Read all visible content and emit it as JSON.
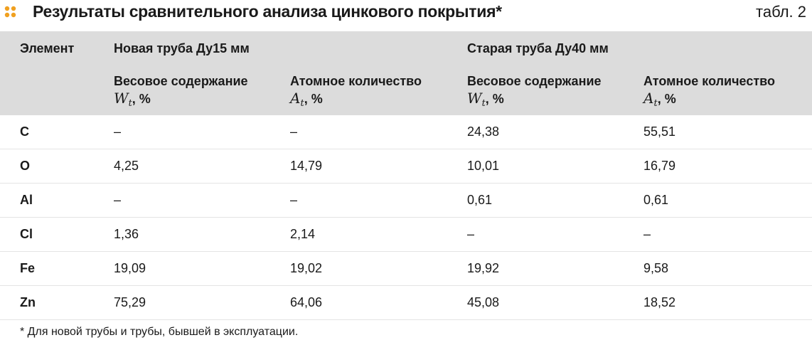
{
  "header": {
    "title": "Результаты сравнительного анализа цинкового покрытия*",
    "number": "табл. 2"
  },
  "table": {
    "element_header": "Элемент",
    "groups": [
      "Новая труба Ду15 мм",
      "Старая труба Ду40 мм"
    ],
    "subheaders": [
      {
        "label": "Весовое содержание",
        "symbol": "W",
        "subscript": "t",
        "suffix": ", %"
      },
      {
        "label": "Атомное количество",
        "symbol": "A",
        "subscript": "t",
        "suffix": ", %"
      },
      {
        "label": "Весовое содержание",
        "symbol": "W",
        "subscript": "t",
        "suffix": ", %"
      },
      {
        "label": "Атомное количество",
        "symbol": "A",
        "subscript": "t",
        "suffix": ", %"
      }
    ],
    "rows": [
      [
        "C",
        "–",
        "–",
        "24,38",
        "55,51"
      ],
      [
        "O",
        "4,25",
        "14,79",
        "10,01",
        "16,79"
      ],
      [
        "Al",
        "–",
        "–",
        "0,61",
        "0,61"
      ],
      [
        "Cl",
        "1,36",
        "2,14",
        "–",
        "–"
      ],
      [
        "Fe",
        "19,09",
        "19,02",
        "19,92",
        "9,58"
      ],
      [
        "Zn",
        "75,29",
        "64,06",
        "45,08",
        "18,52"
      ]
    ]
  },
  "footnote": "* Для новой трубы и трубы, бывшей в эксплуатации."
}
